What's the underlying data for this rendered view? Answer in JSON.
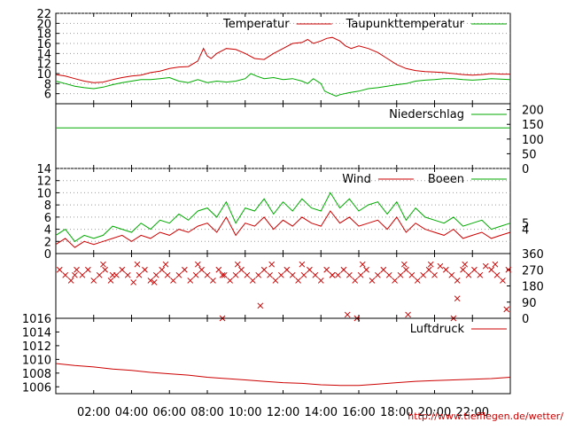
{
  "source_credit": "http://www.tiefflegen.de/wetter/",
  "colors": {
    "red": "#cc0000",
    "green": "#00aa00",
    "grid": "#999999",
    "axis": "#000000"
  },
  "chart_data": [
    {
      "type": "line",
      "panel": "temperature",
      "x_ticks": [
        "02:00",
        "04:00",
        "06:00",
        "08:00",
        "10:00",
        "12:00",
        "14:00",
        "16:00",
        "18:00",
        "20:00",
        "22:00"
      ],
      "ylim": [
        4,
        22
      ],
      "y_ticks": [
        6,
        8,
        10,
        12,
        14,
        16,
        18,
        20,
        22
      ],
      "grid": true,
      "legend_placement": "top-right",
      "series": [
        {
          "name": "Temperatur",
          "color": "#cc0000",
          "x": [
            0,
            0.5,
            1,
            1.5,
            2,
            2.5,
            3,
            3.5,
            4,
            4.5,
            5,
            5.5,
            6,
            6.5,
            7,
            7.5,
            7.8,
            8,
            8.2,
            8.5,
            9,
            9.5,
            10,
            10.5,
            11,
            11.5,
            12,
            12.5,
            13,
            13.3,
            13.6,
            14,
            14.3,
            14.6,
            15,
            15.3,
            15.6,
            16,
            16.5,
            17,
            17.5,
            18,
            18.5,
            19,
            19.5,
            20,
            20.5,
            21,
            21.5,
            22,
            22.5,
            23,
            23.5,
            24
          ],
          "y": [
            9.8,
            9.5,
            9,
            8.5,
            8.2,
            8.3,
            8.8,
            9.2,
            9.5,
            9.7,
            10.2,
            10.5,
            11,
            11.3,
            11.4,
            12.5,
            15,
            13.5,
            13,
            14,
            15,
            14.8,
            14,
            13,
            12.8,
            14,
            15,
            16,
            16.2,
            16.8,
            16,
            16.5,
            17,
            17.2,
            16.5,
            15.5,
            15,
            15.5,
            15,
            14.2,
            13,
            11.8,
            11,
            10.6,
            10.4,
            10.3,
            10.2,
            10,
            9.8,
            9.7,
            9.8,
            10,
            9.9,
            9.9
          ]
        },
        {
          "name": "Taupunkttemperatur",
          "color": "#00aa00",
          "x": [
            0,
            0.5,
            1,
            1.5,
            2,
            2.5,
            3,
            3.5,
            4,
            4.5,
            5,
            5.5,
            6,
            6.5,
            7,
            7.5,
            8,
            8.5,
            9,
            9.5,
            10,
            10.3,
            10.6,
            11,
            11.5,
            12,
            12.5,
            13,
            13.3,
            13.6,
            14,
            14.2,
            14.5,
            14.8,
            15,
            15.5,
            16,
            16.5,
            17,
            17.5,
            18,
            18.5,
            19,
            19.5,
            20,
            20.5,
            21,
            21.5,
            22,
            22.5,
            23,
            23.5,
            24
          ],
          "y": [
            8.5,
            8,
            7.5,
            7.2,
            7,
            7.3,
            7.8,
            8.2,
            8.5,
            8.8,
            8.8,
            9,
            9.2,
            8.5,
            8.2,
            8.8,
            8.2,
            8.5,
            8.3,
            8.5,
            9,
            10,
            9.5,
            9,
            9.2,
            8.8,
            9,
            8.5,
            8,
            9,
            8,
            6.5,
            6,
            5.5,
            5.8,
            6.2,
            6.5,
            7,
            7.2,
            7.5,
            7.8,
            8,
            8.5,
            8.7,
            8.8,
            9,
            9,
            8.8,
            8.7,
            8.8,
            9,
            8.9,
            8.8
          ]
        }
      ]
    },
    {
      "type": "line",
      "panel": "precipitation",
      "ylim": [
        0,
        220
      ],
      "y_ticks": [
        0,
        50,
        100,
        150,
        200
      ],
      "y_axis_side": "right",
      "legend_placement": "top-right",
      "series": [
        {
          "name": "Niederschlag",
          "color": "#00aa00",
          "x": [
            0,
            24
          ],
          "y": [
            138,
            138
          ]
        }
      ]
    },
    {
      "type": "line",
      "panel": "wind",
      "ylim": [
        0,
        14
      ],
      "y_ticks": [
        0,
        2,
        4,
        6,
        8,
        10,
        12,
        14
      ],
      "right_ticks": [
        4,
        5
      ],
      "legend_placement": "top-right",
      "series": [
        {
          "name": "Wind",
          "color": "#cc0000",
          "x": [
            0,
            0.5,
            1,
            1.5,
            2,
            2.5,
            3,
            3.5,
            4,
            4.5,
            5,
            5.5,
            6,
            6.5,
            7,
            7.5,
            8,
            8.5,
            9,
            9.5,
            10,
            10.5,
            11,
            11.5,
            12,
            12.5,
            13,
            13.5,
            14,
            14.5,
            15,
            15.5,
            16,
            16.5,
            17,
            17.5,
            18,
            18.5,
            19,
            19.5,
            20,
            20.5,
            21,
            21.5,
            22,
            22.5,
            23,
            23.5,
            24
          ],
          "y": [
            1.5,
            2.5,
            1,
            2,
            1.5,
            2,
            2.5,
            3,
            2,
            3,
            2.5,
            3.5,
            3,
            4,
            3.5,
            4.5,
            5,
            3.5,
            6,
            3,
            5,
            4.5,
            6,
            4,
            5.5,
            4.5,
            6,
            5,
            4.5,
            7,
            5,
            6,
            4.5,
            5,
            5.5,
            4,
            6,
            3.5,
            5,
            4,
            3.5,
            3,
            4,
            2.5,
            3,
            3.5,
            2.5,
            3,
            3.5
          ]
        },
        {
          "name": "Boeen",
          "color": "#00aa00",
          "x": [
            0,
            0.5,
            1,
            1.5,
            2,
            2.5,
            3,
            3.5,
            4,
            4.5,
            5,
            5.5,
            6,
            6.5,
            7,
            7.5,
            8,
            8.5,
            9,
            9.5,
            10,
            10.5,
            11,
            11.5,
            12,
            12.5,
            13,
            13.5,
            14,
            14.5,
            15,
            15.5,
            16,
            16.5,
            17,
            17.5,
            18,
            18.5,
            19,
            19.5,
            20,
            20.5,
            21,
            21.5,
            22,
            22.5,
            23,
            23.5,
            24
          ],
          "y": [
            3,
            4,
            2,
            3,
            2.5,
            3,
            4.5,
            4,
            3.5,
            5,
            4,
            5.5,
            5,
            6.5,
            5.5,
            7,
            7.5,
            6,
            8.5,
            5,
            7.5,
            7,
            9,
            6.5,
            8.5,
            7,
            9,
            7.5,
            7,
            10,
            7.5,
            9,
            7,
            8,
            8.5,
            6.5,
            8.5,
            5.5,
            7.5,
            6,
            5.5,
            5,
            6,
            4.5,
            5,
            5.5,
            4,
            4.5,
            5
          ]
        }
      ]
    },
    {
      "type": "scatter",
      "panel": "wind-direction",
      "ylim": [
        0,
        360
      ],
      "y_ticks": [
        0,
        90,
        180,
        270,
        360
      ],
      "y_axis_side": "right",
      "series": [
        {
          "name": "",
          "color": "#cc0000",
          "marker": "x",
          "x": [
            0.2,
            0.5,
            0.8,
            1.1,
            1.4,
            1.7,
            2.0,
            2.3,
            2.6,
            2.9,
            3.2,
            3.5,
            3.8,
            4.1,
            4.4,
            4.7,
            5.0,
            5.3,
            5.6,
            5.9,
            6.2,
            6.5,
            6.8,
            7.1,
            7.4,
            7.7,
            8.0,
            8.3,
            8.6,
            8.9,
            9.2,
            9.5,
            9.8,
            10.1,
            10.4,
            10.7,
            11.0,
            11.3,
            11.6,
            11.9,
            12.2,
            12.5,
            12.8,
            13.1,
            13.4,
            13.7,
            14.0,
            14.3,
            14.6,
            14.9,
            15.2,
            15.5,
            15.8,
            16.1,
            16.4,
            16.7,
            17.0,
            17.3,
            17.6,
            17.9,
            18.2,
            18.5,
            18.8,
            19.1,
            19.4,
            19.7,
            20.0,
            20.3,
            20.6,
            20.9,
            21.2,
            21.5,
            21.8,
            22.1,
            22.4,
            22.7,
            23.0,
            23.3,
            23.6,
            23.9,
            1.0,
            2.5,
            4.3,
            5.8,
            7.5,
            8.8,
            9.6,
            11.4,
            13.0,
            14.6,
            16.2,
            18.4,
            19.8,
            21.6,
            23.2,
            8.8,
            15.4,
            15.9,
            18.6,
            21.0,
            23.8,
            10.8,
            21.2,
            5.2,
            3.0
          ],
          "y": [
            270,
            240,
            210,
            270,
            240,
            270,
            210,
            240,
            270,
            210,
            240,
            270,
            240,
            200,
            240,
            270,
            210,
            240,
            270,
            240,
            210,
            240,
            270,
            210,
            240,
            270,
            240,
            210,
            270,
            240,
            210,
            240,
            270,
            240,
            210,
            240,
            270,
            240,
            210,
            240,
            270,
            240,
            210,
            240,
            270,
            240,
            210,
            270,
            240,
            240,
            270,
            240,
            210,
            240,
            270,
            210,
            240,
            270,
            240,
            210,
            240,
            270,
            240,
            210,
            240,
            270,
            240,
            290,
            270,
            240,
            210,
            270,
            240,
            270,
            240,
            290,
            270,
            240,
            210,
            270,
            240,
            300,
            300,
            300,
            300,
            240,
            300,
            300,
            300,
            240,
            300,
            300,
            300,
            300,
            300,
            0,
            20,
            0,
            20,
            0,
            50,
            70,
            110,
            200,
            240
          ]
        }
      ]
    },
    {
      "type": "line",
      "panel": "pressure",
      "ylim": [
        1005,
        1016
      ],
      "y_ticks": [
        1006,
        1008,
        1010,
        1012,
        1014,
        1016
      ],
      "legend_placement": "top-right",
      "series": [
        {
          "name": "Luftdruck",
          "color": "#cc0000",
          "x": [
            0,
            1,
            2,
            3,
            4,
            5,
            6,
            7,
            8,
            9,
            10,
            11,
            12,
            13,
            14,
            15,
            16,
            17,
            18,
            19,
            20,
            21,
            22,
            23,
            24
          ],
          "y": [
            1009.4,
            1009.1,
            1008.9,
            1008.6,
            1008.4,
            1008.1,
            1007.9,
            1007.7,
            1007.4,
            1007.2,
            1007.0,
            1006.8,
            1006.6,
            1006.5,
            1006.3,
            1006.2,
            1006.2,
            1006.4,
            1006.6,
            1006.8,
            1006.9,
            1007.0,
            1007.1,
            1007.2,
            1007.4
          ]
        }
      ]
    }
  ]
}
